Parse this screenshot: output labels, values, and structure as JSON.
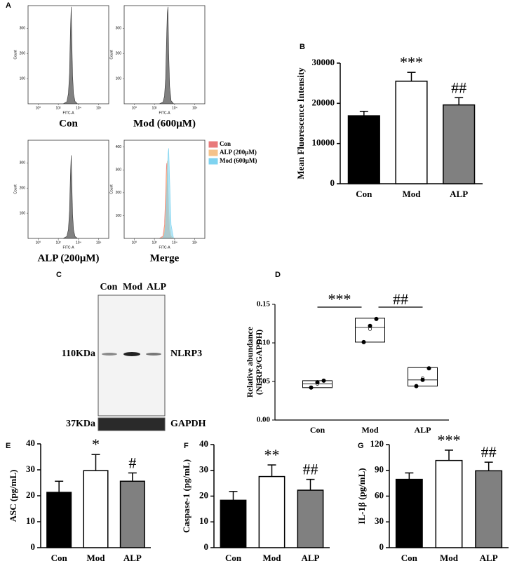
{
  "chart_data": [
    {
      "type": "flow",
      "panel": "A",
      "title": "Con",
      "xlabel": "FITC-A",
      "ylabel": "Count",
      "xscale": "log",
      "xlim": [
        0.1,
        10000000
      ],
      "xticks": [
        {
          "value": 1,
          "label": "10⁰"
        },
        {
          "value": 100,
          "label": "10²"
        },
        {
          "value": 10000,
          "label": "10⁴"
        },
        {
          "value": 1000000,
          "label": "10⁶"
        }
      ],
      "ylim": [
        0,
        390
      ],
      "yticks": [
        100,
        200,
        300
      ],
      "color": "#808080",
      "x": [
        300,
        700,
        1000,
        1300,
        1600,
        1900,
        2200,
        2600,
        3200,
        4500,
        8000
      ],
      "values": [
        0,
        8,
        40,
        120,
        290,
        385,
        250,
        110,
        40,
        10,
        0
      ]
    },
    {
      "type": "flow",
      "title": "Mod (600μM)",
      "xlabel": "FITC-A",
      "ylabel": "Count",
      "xscale": "log",
      "xlim": [
        0.1,
        10000000
      ],
      "xticks": [
        {
          "value": 1,
          "label": "10⁰"
        },
        {
          "value": 100,
          "label": "10²"
        },
        {
          "value": 10000,
          "label": "10⁴"
        },
        {
          "value": 1000000,
          "label": "10⁶"
        }
      ],
      "ylim": [
        0,
        390
      ],
      "yticks": [
        100,
        200,
        300
      ],
      "color": "#808080",
      "x": [
        300,
        700,
        1000,
        1300,
        1600,
        1900,
        2200,
        2600,
        3200,
        4500,
        8000
      ],
      "values": [
        0,
        6,
        30,
        100,
        250,
        360,
        385,
        200,
        70,
        12,
        0
      ]
    },
    {
      "type": "flow",
      "title": "ALP (200μM)",
      "xlabel": "FITC-A",
      "ylabel": "Count",
      "xscale": "log",
      "xlim": [
        0.1,
        10000000
      ],
      "xticks": [
        {
          "value": 1,
          "label": "10⁰"
        },
        {
          "value": 100,
          "label": "10²"
        },
        {
          "value": 10000,
          "label": "10⁴"
        },
        {
          "value": 1000000,
          "label": "10⁶"
        }
      ],
      "ylim": [
        0,
        390
      ],
      "yticks": [
        100,
        200,
        300
      ],
      "color": "#808080",
      "x": [
        300,
        700,
        1000,
        1300,
        1600,
        1900,
        2200,
        2600,
        3200,
        4500,
        8000
      ],
      "values": [
        0,
        8,
        35,
        110,
        250,
        330,
        220,
        95,
        35,
        8,
        0
      ]
    },
    {
      "type": "flow",
      "title": "Merge",
      "xlabel": "FITC-A",
      "ylabel": "Count",
      "xscale": "log",
      "xlim": [
        0.1,
        10000000
      ],
      "xticks": [
        {
          "value": 1,
          "label": "10⁰"
        },
        {
          "value": 100,
          "label": "10²"
        },
        {
          "value": 10000,
          "label": "10⁴"
        },
        {
          "value": 1000000,
          "label": "10⁶"
        }
      ],
      "ylim": [
        0,
        430
      ],
      "yticks": [
        100,
        200,
        300,
        400
      ],
      "x": [
        300,
        700,
        1000,
        1300,
        1600,
        1900,
        2200,
        2600,
        3200,
        4500,
        8000
      ],
      "series": [
        {
          "name": "Con",
          "color": "#e8797a",
          "values": [
            0,
            10,
            60,
            200,
            330,
            250,
            120,
            50,
            15,
            3,
            0
          ]
        },
        {
          "name": "ALP (200μM)",
          "color": "#f5c28a",
          "values": [
            0,
            5,
            30,
            120,
            260,
            340,
            250,
            130,
            50,
            10,
            0
          ]
        },
        {
          "name": "Mod (600μM)",
          "color": "#7fd3f0",
          "values": [
            0,
            2,
            15,
            60,
            160,
            270,
            370,
            395,
            260,
            60,
            0
          ]
        }
      ]
    },
    {
      "type": "bar",
      "panel": "B",
      "ylabel": "Mean Fluorescence Intensity",
      "categories": [
        "Con",
        "Mod",
        "ALP"
      ],
      "values": [
        16900,
        25500,
        19600
      ],
      "errors": [
        1100,
        2200,
        1800
      ],
      "annotations": [
        null,
        "***",
        "##"
      ],
      "colors": [
        "#000000",
        "#ffffff",
        "#808080"
      ],
      "ylim": [
        0,
        30000
      ],
      "yticks": [
        0,
        10000,
        20000,
        30000
      ]
    },
    {
      "type": "box",
      "panel": "D",
      "ylabel": [
        "Relative abundance",
        "(NLRP3/GAPDH)"
      ],
      "categories": [
        "Con",
        "Mod",
        "ALP"
      ],
      "boxes": [
        {
          "low": 0.042,
          "high": 0.051,
          "median": 0.047,
          "mean": 0.047,
          "points": [
            0.042,
            0.049,
            0.051
          ]
        },
        {
          "low": 0.101,
          "high": 0.132,
          "median": 0.12,
          "mean": 0.118,
          "points": [
            0.101,
            0.122,
            0.131
          ]
        },
        {
          "low": 0.044,
          "high": 0.068,
          "median": 0.052,
          "mean": 0.054,
          "points": [
            0.044,
            0.052,
            0.067
          ]
        }
      ],
      "annotations": [
        "***",
        "##"
      ],
      "ylim": [
        0,
        0.15
      ],
      "yticks": [
        {
          "value": 0,
          "label": "0.00"
        },
        {
          "value": 0.05,
          "label": "0.05"
        },
        {
          "value": 0.1,
          "label": "0.10"
        },
        {
          "value": 0.15,
          "label": "0.15"
        }
      ]
    },
    {
      "type": "bar",
      "panel": "E",
      "ylabel": "ASC (pg/mL)",
      "categories": [
        "Con",
        "Mod",
        "ALP"
      ],
      "values": [
        21.3,
        29.7,
        25.6
      ],
      "errors": [
        4.3,
        6.2,
        3.2
      ],
      "annotations": [
        null,
        "*",
        "#"
      ],
      "colors": [
        "#000000",
        "#ffffff",
        "#808080"
      ],
      "ylim": [
        0,
        40
      ],
      "yticks": [
        0,
        10,
        20,
        30,
        40
      ]
    },
    {
      "type": "bar",
      "panel": "F",
      "ylabel": "Caspase-1 (pg/mL)",
      "categories": [
        "Con",
        "Mod",
        "ALP"
      ],
      "values": [
        18.4,
        27.6,
        22.3
      ],
      "errors": [
        3.4,
        4.5,
        4.2
      ],
      "annotations": [
        null,
        "**",
        "##"
      ],
      "colors": [
        "#000000",
        "#ffffff",
        "#808080"
      ],
      "ylim": [
        0,
        40
      ],
      "yticks": [
        0,
        10,
        20,
        30,
        40
      ]
    },
    {
      "type": "bar",
      "panel": "G",
      "ylabel": "IL-1β (pg/mL)",
      "categories": [
        "Con",
        "Mod",
        "ALP"
      ],
      "values": [
        79.5,
        101.5,
        89.5
      ],
      "errors": [
        7.5,
        12,
        10
      ],
      "annotations": [
        null,
        "***",
        "##"
      ],
      "colors": [
        "#000000",
        "#ffffff",
        "#808080"
      ],
      "ylim": [
        0,
        120
      ],
      "yticks": [
        0,
        30,
        60,
        90,
        120
      ]
    }
  ],
  "blot": {
    "panel": "C",
    "lanes": [
      "Con",
      "Mod",
      "ALP"
    ],
    "bands": [
      {
        "size": "110KDa",
        "protein": "NLRP3"
      },
      {
        "size": "37KDa",
        "protein": "GAPDH"
      }
    ]
  }
}
